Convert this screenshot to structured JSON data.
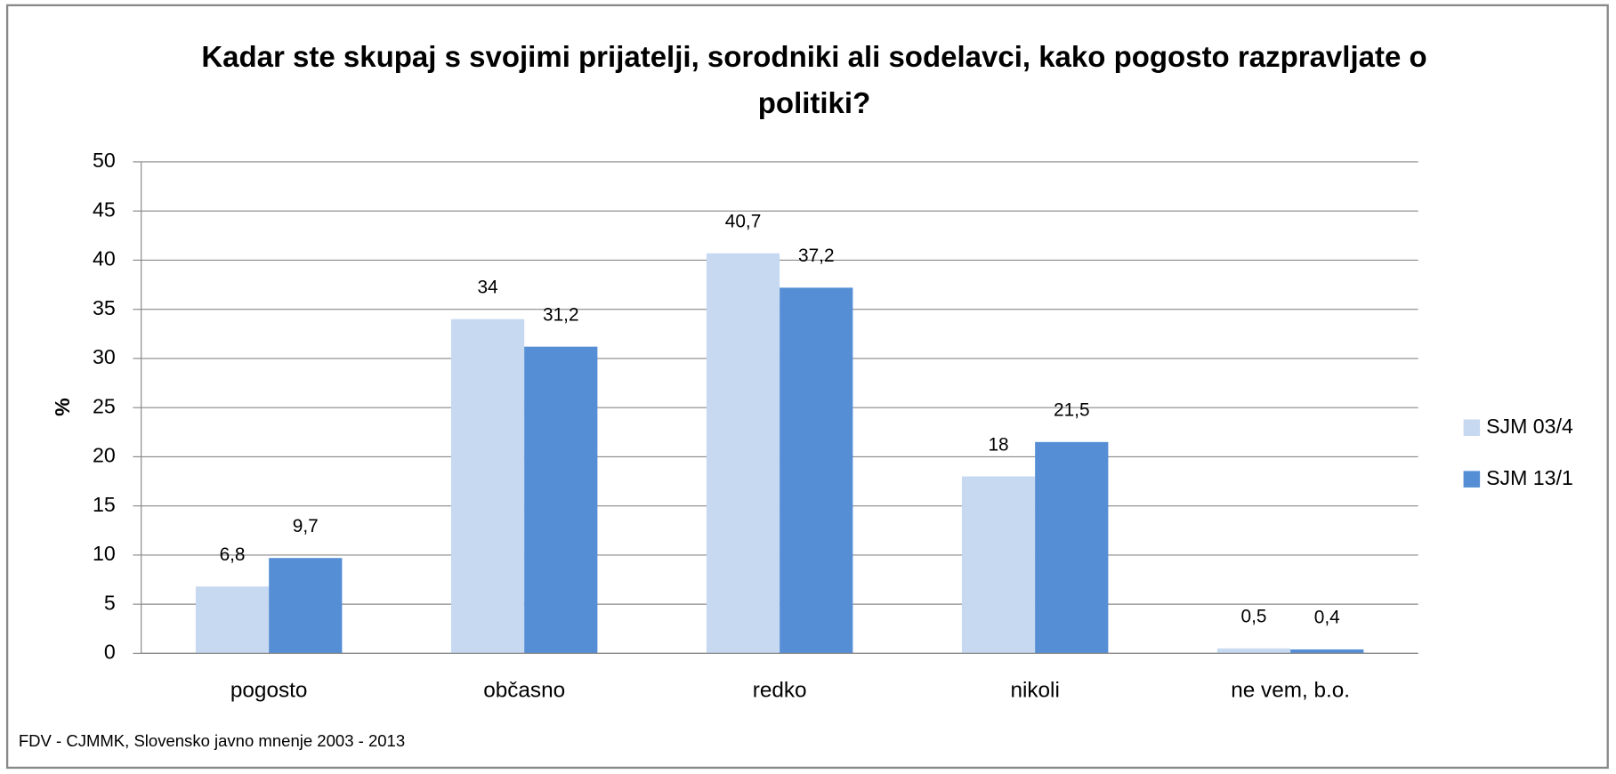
{
  "chart_data": {
    "type": "bar",
    "title": "Kadar ste skupaj s svojimi prijatelji, sorodniki ali sodelavci, kako pogosto razpravljate o politiki?",
    "y_label": "%",
    "categories": [
      "pogosto",
      "občasno",
      "redko",
      "nikoli",
      "ne vem, b.o."
    ],
    "series": [
      {
        "name": "SJM 03/4",
        "color": "#c6d9f1",
        "values": [
          6.8,
          34,
          40.7,
          18,
          0.5
        ],
        "value_labels": [
          "6,8",
          "34",
          "40,7",
          "18",
          "0,5"
        ]
      },
      {
        "name": "SJM 13/1",
        "color": "#558ed5",
        "values": [
          9.7,
          31.2,
          37.2,
          21.5,
          0.4
        ],
        "value_labels": [
          "9,7",
          "31,2",
          "37,2",
          "21,5",
          "0,4"
        ]
      }
    ],
    "ylim": [
      0,
      50
    ],
    "yticks": [
      0,
      5,
      10,
      15,
      20,
      25,
      30,
      35,
      40,
      45,
      50
    ],
    "grid": true,
    "legend": "right",
    "source": "FDV - CJMMK, Slovensko javno mnenje 2003 - 2013"
  }
}
